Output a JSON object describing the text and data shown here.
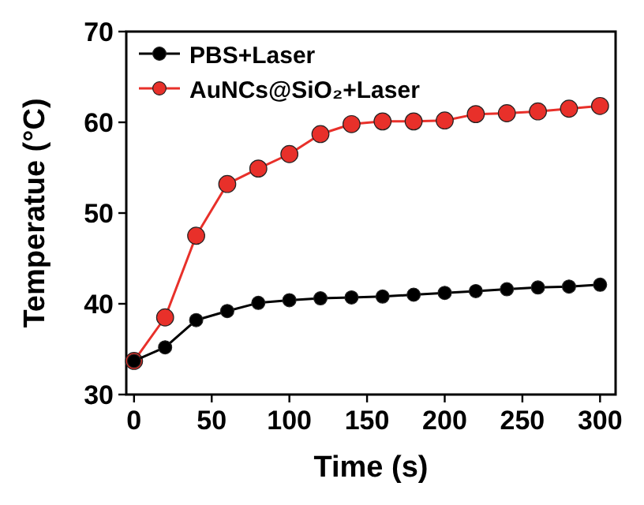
{
  "chart_data": {
    "type": "line",
    "xlabel": "Time (s)",
    "ylabel": "Temperatue (°C)",
    "x": [
      0,
      20,
      40,
      60,
      80,
      100,
      120,
      140,
      160,
      180,
      200,
      220,
      240,
      260,
      280,
      300
    ],
    "series": [
      {
        "name": "PBS+Laser",
        "color": "#000000",
        "values": [
          33.7,
          35.2,
          38.2,
          39.2,
          40.1,
          40.4,
          40.6,
          40.7,
          40.8,
          41.0,
          41.2,
          41.4,
          41.6,
          41.8,
          41.9,
          42.1
        ]
      },
      {
        "name": "AuNCs@SiO₂+Laser",
        "color": "#e8302a",
        "values": [
          33.7,
          38.5,
          47.5,
          53.2,
          54.9,
          56.5,
          58.7,
          59.8,
          60.1,
          60.1,
          60.2,
          60.9,
          61.0,
          61.2,
          61.5,
          61.8
        ]
      }
    ],
    "xlim": [
      -5,
      310
    ],
    "xticks": [
      0,
      50,
      100,
      150,
      200,
      250,
      300
    ],
    "ylim": [
      30,
      70
    ],
    "yticks": [
      30,
      40,
      50,
      60,
      70
    ],
    "legend": "top left",
    "marker": "circle",
    "line_style": "solid",
    "grid": false
  }
}
